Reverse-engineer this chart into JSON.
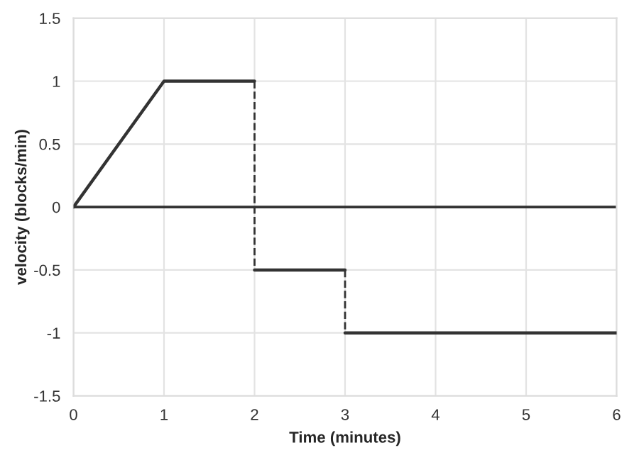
{
  "chart_data": {
    "type": "line",
    "xlabel": "Time (minutes)",
    "ylabel": "velocity (blocks/min)",
    "xlim": [
      0,
      6
    ],
    "xticks": [
      0,
      1,
      2,
      3,
      4,
      5,
      6
    ],
    "ylim": [
      -1.5,
      1.5
    ],
    "yticks": [
      {
        "value": -1.5,
        "label": "-1.5"
      },
      {
        "value": -1,
        "label": "-1"
      },
      {
        "value": -0.5,
        "label": "-0.5"
      },
      0,
      0.5,
      1,
      1.5
    ],
    "grid": true,
    "marker": "none",
    "ref_lines": [
      {
        "axis": "y",
        "value": 0,
        "color": "#333333",
        "line_style": "solid"
      }
    ],
    "series": [
      {
        "x": [
          0,
          1,
          2
        ],
        "values": [
          0,
          1,
          1
        ],
        "color": "#333333",
        "line_style": "solid"
      },
      {
        "x": [
          2,
          2
        ],
        "values": [
          1,
          -0.5
        ],
        "color": "#333333",
        "line_style": "dashed"
      },
      {
        "x": [
          2,
          3
        ],
        "values": [
          -0.5,
          -0.5
        ],
        "color": "#333333",
        "line_style": "solid"
      },
      {
        "x": [
          3,
          3
        ],
        "values": [
          -0.5,
          -1
        ],
        "color": "#333333",
        "line_style": "dashed"
      },
      {
        "x": [
          3,
          6
        ],
        "values": [
          -1,
          -1
        ],
        "color": "#333333",
        "line_style": "solid"
      }
    ]
  }
}
